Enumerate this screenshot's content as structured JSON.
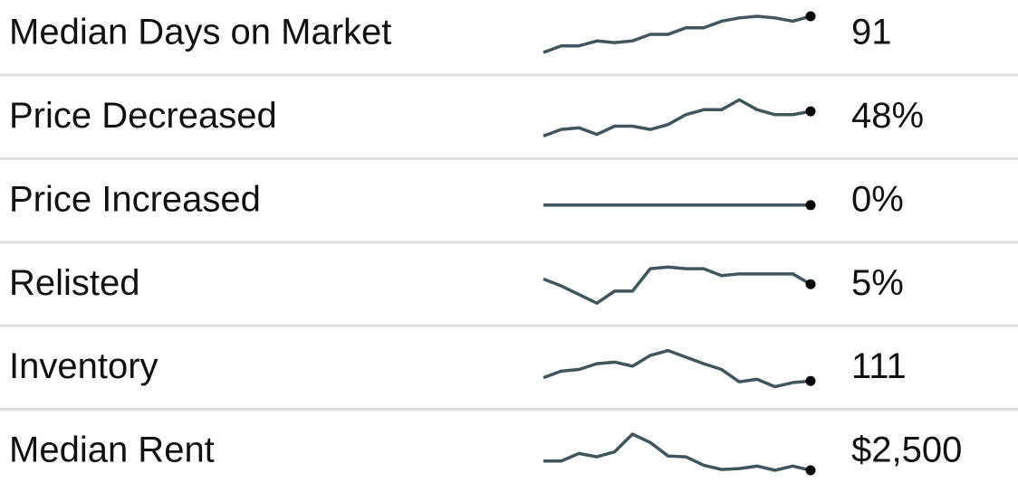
{
  "rows": [
    {
      "label": "Median Days on Market",
      "value": 91,
      "trend": [
        69,
        73,
        73,
        76,
        75,
        76,
        80,
        80,
        84,
        84,
        88,
        90,
        91,
        90,
        88,
        91
      ]
    },
    {
      "label": "Price Decreased",
      "value": 48,
      "value_label": "48%",
      "trend": [
        33,
        37,
        38,
        34,
        39,
        39,
        37,
        40,
        46,
        49,
        49,
        55,
        49,
        46,
        46,
        48
      ]
    },
    {
      "label": "Price Increased",
      "value": 0,
      "value_label": "0%",
      "trend": [
        0,
        0,
        0,
        0,
        0,
        0,
        0,
        0,
        0,
        0,
        0,
        0,
        0,
        0,
        0,
        0
      ]
    },
    {
      "label": "Relisted",
      "value": 5,
      "value_label": "5%",
      "trend": [
        5.3,
        4.9,
        4.4,
        3.9,
        4.6,
        4.6,
        5.9,
        6.0,
        5.9,
        5.9,
        5.5,
        5.6,
        5.6,
        5.6,
        5.6,
        5
      ]
    },
    {
      "label": "Inventory",
      "value": 111,
      "trend": [
        115,
        123,
        125,
        132,
        134,
        129,
        142,
        148,
        140,
        132,
        125,
        110,
        113,
        104,
        109,
        111
      ]
    },
    {
      "label": "Median Rent",
      "value": 2500,
      "value_label": "$2,500",
      "trend": [
        2610,
        2610,
        2700,
        2660,
        2720,
        2930,
        2830,
        2670,
        2660,
        2560,
        2510,
        2520,
        2550,
        2500,
        2550,
        2500
      ]
    }
  ]
}
